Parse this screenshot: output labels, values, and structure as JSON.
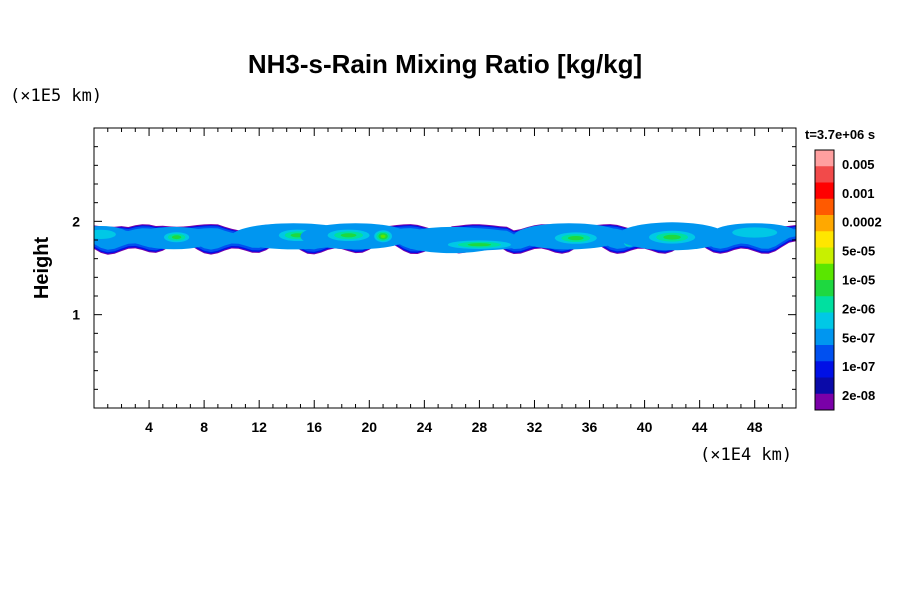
{
  "chart_data": {
    "type": "heatmap",
    "title": "NH3-s-Rain Mixing Ratio [kg/kg]",
    "xlabel": "",
    "ylabel": "Height",
    "x_unit": "(×1E4 km)",
    "y_unit": "(×1E5 km)",
    "xlim": [
      0,
      51
    ],
    "ylim": [
      0,
      3
    ],
    "x_ticks": [
      4,
      8,
      12,
      16,
      20,
      24,
      28,
      32,
      36,
      40,
      44,
      48
    ],
    "y_ticks": [
      1,
      2
    ],
    "x_minor_step": 1,
    "y_minor_step": 0.2,
    "time_label": "t=3.7e+06 s",
    "colorbar": {
      "colors_top_to_bottom": [
        "#ff9f9f",
        "#f24a4a",
        "#ff0000",
        "#ff5a00",
        "#ffa800",
        "#ffe600",
        "#c8f000",
        "#5ae600",
        "#1ed840",
        "#00e0a0",
        "#00c8e6",
        "#0096f0",
        "#0050f0",
        "#0010e6",
        "#0a0aa8",
        "#7a00a8"
      ],
      "labels": [
        {
          "text": "0.005",
          "band": 0.5
        },
        {
          "text": "0.001",
          "band": 1.5
        },
        {
          "text": "0.0002",
          "band": 2.5
        },
        {
          "text": "5e-05",
          "band": 3.5
        },
        {
          "text": "1e-05",
          "band": 4.5
        },
        {
          "text": "2e-06",
          "band": 5.5
        },
        {
          "text": "5e-07",
          "band": 6.5
        },
        {
          "text": "1e-07",
          "band": 7.5
        },
        {
          "text": "2e-08",
          "band": 8.5
        }
      ]
    },
    "field": {
      "layer_top": 1.97,
      "layer_bottom_min": 1.62,
      "blobs": [
        {
          "x": 0.5,
          "y": 1.86,
          "rx": 2.0,
          "ry": 0.09,
          "level": 5
        },
        {
          "x": 5.8,
          "y": 1.82,
          "rx": 3.0,
          "ry": 0.12,
          "level": 4
        },
        {
          "x": 6.0,
          "y": 1.83,
          "rx": 1.2,
          "ry": 0.07,
          "level": 7
        },
        {
          "x": 14.5,
          "y": 1.84,
          "rx": 4.5,
          "ry": 0.14,
          "level": 4
        },
        {
          "x": 14.8,
          "y": 1.85,
          "rx": 1.8,
          "ry": 0.08,
          "level": 7
        },
        {
          "x": 19.0,
          "y": 1.84,
          "rx": 4.0,
          "ry": 0.14,
          "level": 4
        },
        {
          "x": 18.5,
          "y": 1.85,
          "rx": 2.0,
          "ry": 0.08,
          "level": 7
        },
        {
          "x": 21.0,
          "y": 1.84,
          "rx": 0.8,
          "ry": 0.08,
          "level": 8
        },
        {
          "x": 26.0,
          "y": 1.8,
          "rx": 4.0,
          "ry": 0.14,
          "level": 4
        },
        {
          "x": 28.0,
          "y": 1.75,
          "rx": 3.0,
          "ry": 0.06,
          "level": 7
        },
        {
          "x": 34.5,
          "y": 1.84,
          "rx": 4.0,
          "ry": 0.14,
          "level": 4
        },
        {
          "x": 35.0,
          "y": 1.82,
          "rx": 2.0,
          "ry": 0.08,
          "level": 7
        },
        {
          "x": 38.9,
          "y": 1.77,
          "rx": 0.5,
          "ry": 0.05,
          "level": 8
        },
        {
          "x": 42.0,
          "y": 1.84,
          "rx": 4.0,
          "ry": 0.15,
          "level": 4
        },
        {
          "x": 42.0,
          "y": 1.83,
          "rx": 2.2,
          "ry": 0.09,
          "level": 7
        },
        {
          "x": 48.0,
          "y": 1.88,
          "rx": 3.0,
          "ry": 0.1,
          "level": 5
        }
      ]
    }
  }
}
